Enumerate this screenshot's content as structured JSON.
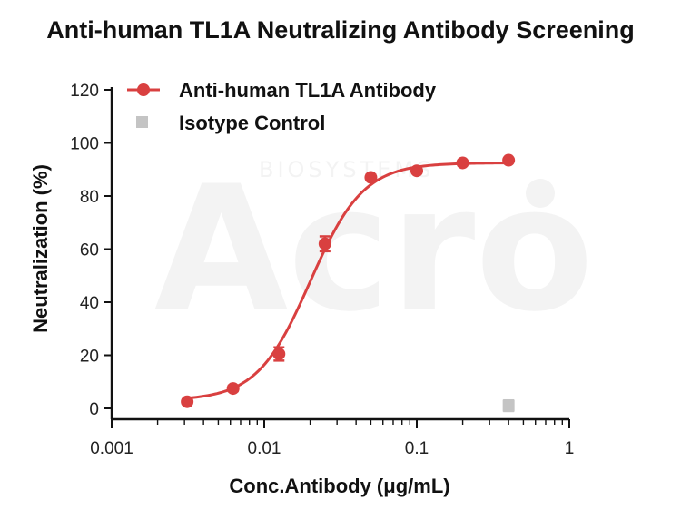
{
  "chart_data": {
    "type": "line",
    "title": "Anti-human TL1A Neutralizing Antibody Screening",
    "xlabel": "Conc.Antibody (μg/mL)",
    "ylabel": "Neutralization (%)",
    "x_scale": "log",
    "xlim": [
      0.001,
      1
    ],
    "ylim": [
      0,
      120
    ],
    "x_ticks": [
      "0.001",
      "0.01",
      "0.1",
      "1"
    ],
    "y_ticks": [
      "0",
      "20",
      "40",
      "60",
      "80",
      "100",
      "120"
    ],
    "grid": false,
    "legend_position": "top-left",
    "series": [
      {
        "name": "Anti-human TL1A Antibody",
        "color": "#d94040",
        "marker": "circle",
        "x": [
          0.003125,
          0.00625,
          0.0125,
          0.025,
          0.05,
          0.1,
          0.2,
          0.4
        ],
        "y": [
          2.5,
          7.5,
          20.5,
          62,
          87,
          89.5,
          92.5,
          93.5
        ],
        "error": [
          0.8,
          1.0,
          2.5,
          2.8,
          1.0,
          0.8,
          0.6,
          0.5
        ]
      },
      {
        "name": "Isotype Control",
        "color": "#c4c4c4",
        "marker": "square",
        "x": [
          0.4
        ],
        "y": [
          1.0
        ],
        "error": [
          2.0
        ]
      }
    ],
    "fit": {
      "series": "Anti-human TL1A Antibody",
      "bottom": 3,
      "top": 92.5,
      "ec50": 0.02,
      "hill": 2.5
    }
  },
  "watermark": {
    "text_small": "BIOSYSTEMS",
    "text_large": "Acro"
  }
}
